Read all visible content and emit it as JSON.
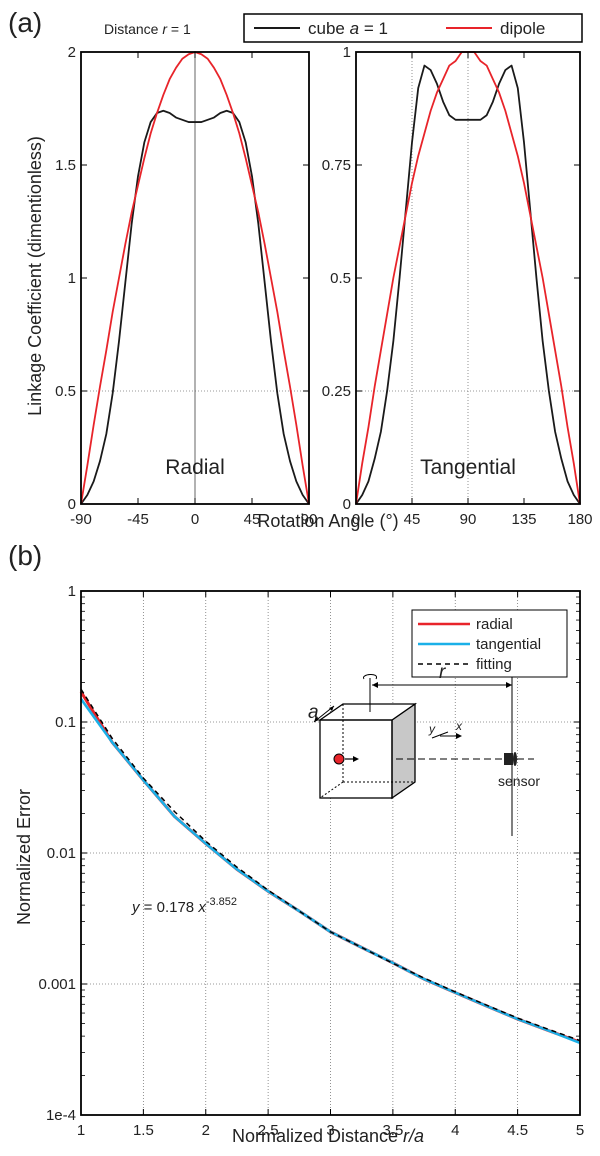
{
  "panel_a": {
    "letter": "(a)",
    "distance_note_prefix": "Distance",
    "distance_note_var": "r",
    "distance_note_suffix": "= 1",
    "legend": {
      "cube_prefix": "cube",
      "cube_var": "a",
      "cube_suffix": "= 1",
      "dipole": "dipole"
    },
    "ylabel": "Linkage Coefficient (dimentionless)",
    "xlabel": "Rotation Angle (°)"
  },
  "panel_b": {
    "letter": "(b)",
    "legend": {
      "radial": "radial",
      "tangential": "tangential",
      "fitting": "fitting"
    },
    "ylabel": "Normalized Error",
    "xlabel_prefix": "Normalized Distance",
    "xlabel_var": "r/a",
    "equation_prefix": "y",
    "equation_mid": "= 0.178",
    "equation_var": "x",
    "equation_exp": "-3.852",
    "inset": {
      "label_a": "a",
      "label_r": "r",
      "label_y": "y",
      "label_x": "x",
      "label_sensor": "sensor"
    }
  },
  "colors": {
    "cube": "#1a1a1a",
    "dipole": "#e8242a",
    "radial": "#e8242a",
    "tangential": "#1ab0e8",
    "fitting": "#000000"
  },
  "chart_data": [
    {
      "type": "line",
      "title": "Radial",
      "xlim": [
        -90,
        90
      ],
      "ylim": [
        0,
        2
      ],
      "xticks": [
        "-90",
        "-45",
        "0",
        "45",
        "90"
      ],
      "yticks": [
        "0",
        "0.5",
        "1",
        "1.5",
        "2"
      ],
      "series": [
        {
          "name": "cube a = 1",
          "x": [
            -90,
            -85,
            -80,
            -75,
            -70,
            -65,
            -60,
            -55,
            -50,
            -45,
            -40,
            -35,
            -30,
            -25,
            -20,
            -15,
            -10,
            -5,
            0,
            5,
            10,
            15,
            20,
            25,
            30,
            35,
            40,
            45,
            50,
            55,
            60,
            65,
            70,
            75,
            80,
            85,
            90
          ],
          "y": [
            0,
            0.04,
            0.1,
            0.19,
            0.31,
            0.49,
            0.72,
            0.98,
            1.24,
            1.45,
            1.6,
            1.69,
            1.73,
            1.74,
            1.73,
            1.71,
            1.7,
            1.69,
            1.69,
            1.69,
            1.7,
            1.71,
            1.73,
            1.74,
            1.73,
            1.69,
            1.6,
            1.45,
            1.24,
            0.98,
            0.72,
            0.49,
            0.31,
            0.19,
            0.1,
            0.04,
            0
          ]
        },
        {
          "name": "dipole",
          "x": [
            -90,
            -85,
            -80,
            -75,
            -70,
            -65,
            -60,
            -55,
            -50,
            -45,
            -40,
            -35,
            -30,
            -25,
            -20,
            -15,
            -10,
            -5,
            0,
            5,
            10,
            15,
            20,
            25,
            30,
            35,
            40,
            45,
            50,
            55,
            60,
            65,
            70,
            75,
            80,
            85,
            90
          ],
          "y": [
            0,
            0.17,
            0.35,
            0.52,
            0.68,
            0.85,
            1.0,
            1.15,
            1.29,
            1.41,
            1.53,
            1.64,
            1.73,
            1.81,
            1.88,
            1.93,
            1.97,
            1.99,
            2.0,
            1.99,
            1.97,
            1.93,
            1.88,
            1.81,
            1.73,
            1.64,
            1.53,
            1.41,
            1.29,
            1.15,
            1.0,
            0.85,
            0.68,
            0.52,
            0.35,
            0.17,
            0
          ]
        }
      ]
    },
    {
      "type": "line",
      "title": "Tangential",
      "xlim": [
        0,
        180
      ],
      "ylim": [
        0,
        1
      ],
      "xticks": [
        "0",
        "45",
        "90",
        "135",
        "180"
      ],
      "yticks": [
        "0",
        "0.25",
        "0.5",
        "0.75",
        "1"
      ],
      "series": [
        {
          "name": "cube a = 1",
          "x": [
            0,
            5,
            10,
            15,
            20,
            25,
            30,
            35,
            40,
            45,
            50,
            55,
            60,
            65,
            70,
            75,
            80,
            85,
            90,
            95,
            100,
            105,
            110,
            115,
            120,
            125,
            130,
            135,
            140,
            145,
            150,
            155,
            160,
            165,
            170,
            175,
            180
          ],
          "y": [
            0,
            0.02,
            0.05,
            0.1,
            0.16,
            0.25,
            0.36,
            0.5,
            0.65,
            0.8,
            0.92,
            0.97,
            0.96,
            0.93,
            0.89,
            0.86,
            0.85,
            0.85,
            0.85,
            0.85,
            0.85,
            0.86,
            0.89,
            0.93,
            0.96,
            0.97,
            0.92,
            0.8,
            0.65,
            0.5,
            0.36,
            0.25,
            0.16,
            0.1,
            0.05,
            0.02,
            0
          ]
        },
        {
          "name": "dipole",
          "x": [
            0,
            5,
            10,
            15,
            20,
            25,
            30,
            35,
            40,
            45,
            50,
            55,
            60,
            65,
            70,
            75,
            80,
            85,
            90,
            95,
            100,
            105,
            110,
            115,
            120,
            125,
            130,
            135,
            140,
            145,
            150,
            155,
            160,
            165,
            170,
            175,
            180
          ],
          "y": [
            0,
            0.09,
            0.17,
            0.26,
            0.34,
            0.42,
            0.5,
            0.57,
            0.64,
            0.71,
            0.77,
            0.82,
            0.87,
            0.91,
            0.94,
            0.97,
            0.98,
            1.0,
            1.0,
            1.0,
            0.98,
            0.97,
            0.94,
            0.91,
            0.87,
            0.82,
            0.77,
            0.71,
            0.64,
            0.57,
            0.5,
            0.42,
            0.34,
            0.26,
            0.17,
            0.09,
            0
          ]
        }
      ]
    },
    {
      "type": "line",
      "xlim": [
        1,
        5
      ],
      "ylim": [
        0.0001,
        1
      ],
      "yscale": "log",
      "xticks": [
        "1",
        "1.5",
        "2",
        "2.5",
        "3",
        "3.5",
        "4",
        "4.5",
        "5"
      ],
      "yticks": [
        "1e-4",
        "0.001",
        "0.01",
        "0.1",
        "1"
      ],
      "series": [
        {
          "name": "radial",
          "x": [
            1,
            1.25,
            1.5,
            1.75,
            2,
            2.25,
            2.5,
            2.75,
            3,
            3.25,
            3.5,
            3.75,
            4,
            4.25,
            4.5,
            4.75,
            5
          ],
          "y": [
            0.17,
            0.07,
            0.036,
            0.019,
            0.0118,
            0.0075,
            0.0051,
            0.0036,
            0.0025,
            0.0019,
            0.00145,
            0.00109,
            0.00086,
            0.00068,
            0.00054,
            0.00044,
            0.00036
          ]
        },
        {
          "name": "tangential",
          "x": [
            1,
            1.25,
            1.5,
            1.75,
            2,
            2.25,
            2.5,
            2.75,
            3,
            3.25,
            3.5,
            3.75,
            4,
            4.25,
            4.5,
            4.75,
            5
          ],
          "y": [
            0.15,
            0.07,
            0.036,
            0.019,
            0.0118,
            0.0075,
            0.0051,
            0.0036,
            0.0025,
            0.0019,
            0.00145,
            0.00109,
            0.00086,
            0.00068,
            0.00054,
            0.00044,
            0.000355
          ]
        },
        {
          "name": "fitting",
          "x": [
            1,
            1.25,
            1.5,
            1.75,
            2,
            2.25,
            2.5,
            2.75,
            3,
            3.25,
            3.5,
            3.75,
            4,
            4.25,
            4.5,
            4.75,
            5
          ],
          "y": [
            0.178,
            0.075,
            0.0373,
            0.0207,
            0.0123,
            0.0078,
            0.0052,
            0.0036,
            0.0025,
            0.0019,
            0.00144,
            0.00111,
            0.00087,
            0.00069,
            0.00055,
            0.00045,
            0.00037
          ]
        }
      ]
    }
  ]
}
